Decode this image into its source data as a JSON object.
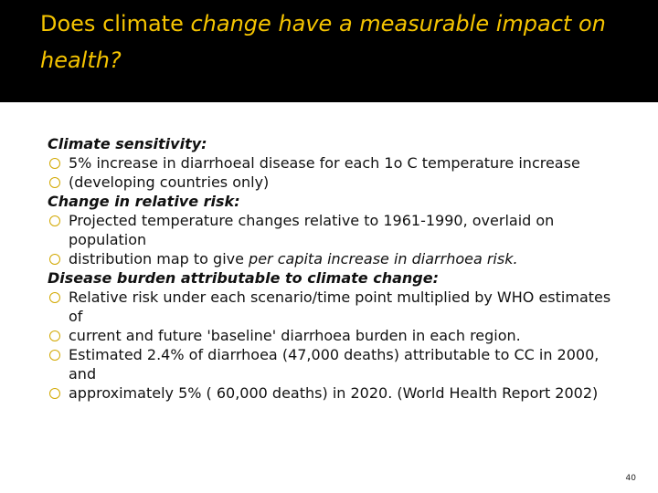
{
  "slide": {
    "title_plain": "Does climate ",
    "title_italic": "change have a measurable impact on health?",
    "page_number": "40"
  },
  "sections": [
    {
      "heading": "Climate sensitivity:",
      "bullets": [
        {
          "text": "5% increase in diarrhoeal disease for each 1o C temperature increase"
        },
        {
          "text": "(developing countries only)"
        }
      ]
    },
    {
      "heading": "Change in relative risk:",
      "bullets": [
        {
          "text": "Projected temperature changes relative to 1961-1990, overlaid on population"
        },
        {
          "text": "distribution map to give ",
          "italic": "per capita increase in diarrhoea risk."
        }
      ]
    },
    {
      "heading": "Disease burden attributable to climate change:",
      "bullets": [
        {
          "text": "Relative risk under each scenario/time point multiplied by WHO estimates of"
        },
        {
          "text": "current and future 'baseline' diarrhoea burden in each region."
        },
        {
          "text": "Estimated 2.4% of diarrhoea (47,000 deaths) attributable to CC in 2000, and"
        },
        {
          "text": "approximately 5% ( 60,000 deaths) in 2020. (World Health Report 2002)"
        }
      ]
    }
  ],
  "colors": {
    "title": "#f5c400",
    "header_bg": "#000000",
    "bullet": "#d2a800"
  }
}
